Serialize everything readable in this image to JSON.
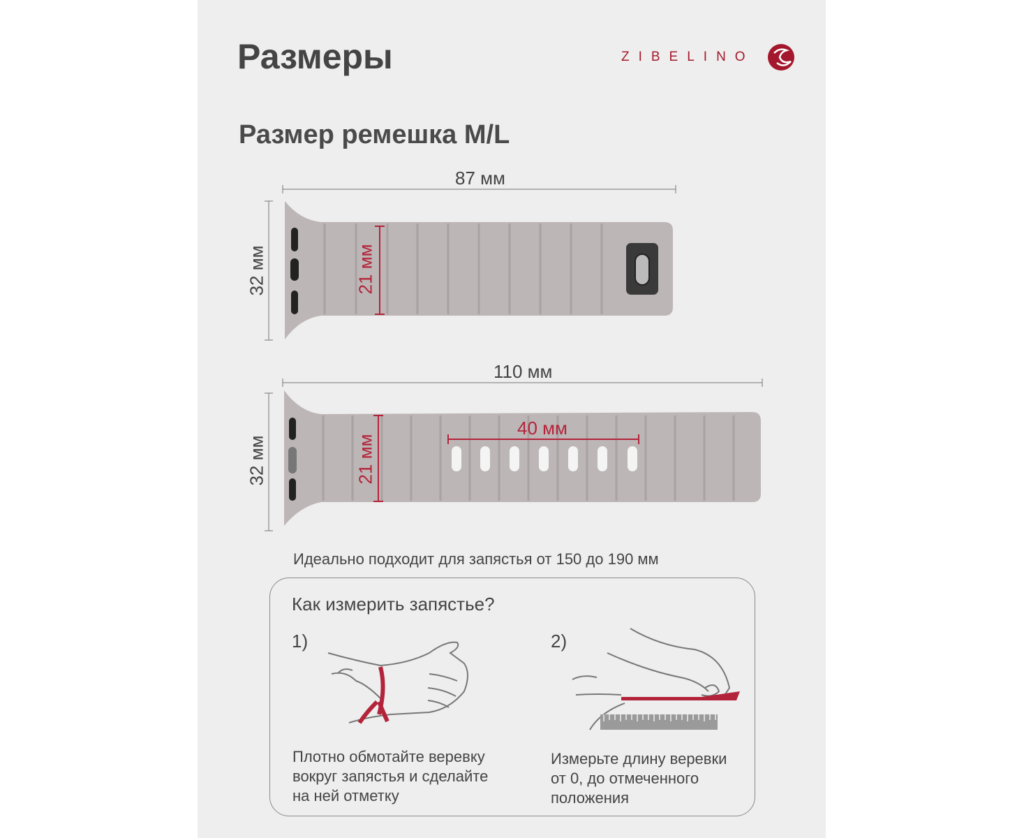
{
  "header": {
    "title": "Размеры",
    "brand": "ZIBELINO"
  },
  "subtitle": "Размер ремешка M/L",
  "strap_short": {
    "length": "87 мм",
    "height": "32 мм",
    "width": "21 мм"
  },
  "strap_long": {
    "length": "110 мм",
    "height": "32 мм",
    "width": "21 мм",
    "holes_span": "40 мм"
  },
  "fit_text": "Идеально подходит для запястья от 150 до 190 мм",
  "measure": {
    "title": "Как измерить запястье?",
    "steps": [
      {
        "number": "1)",
        "text": [
          "Плотно обмотайте веревку",
          "вокруг запястья и сделайте",
          "на ней отметку"
        ]
      },
      {
        "number": "2)",
        "text": [
          "Измерьте длину веревки",
          "от 0, до отмеченного",
          "положения"
        ]
      }
    ]
  },
  "colors": {
    "accent": "#b3243b",
    "band": "#bdb6b6",
    "panel": "#eeeeee"
  }
}
